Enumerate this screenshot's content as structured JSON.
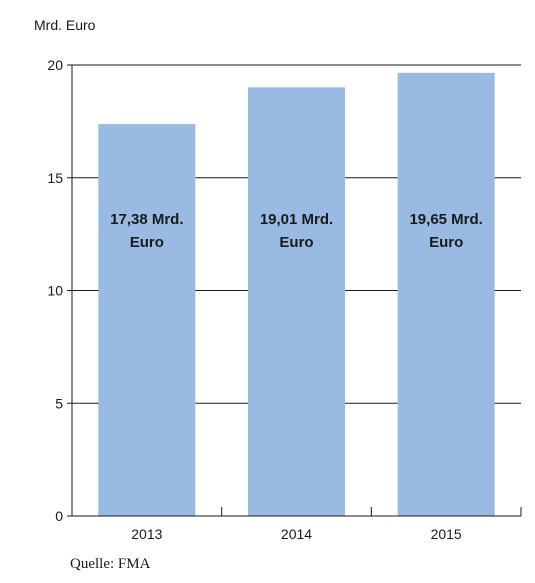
{
  "chart_data": {
    "type": "bar",
    "ylabel": "Mrd. Euro",
    "categories": [
      "2013",
      "2014",
      "2015"
    ],
    "values": [
      17.38,
      19.01,
      19.65
    ],
    "data_labels": [
      [
        "17,38 Mrd.",
        "Euro"
      ],
      [
        "19,01 Mrd.",
        "Euro"
      ],
      [
        "19,65 Mrd.",
        "Euro"
      ]
    ],
    "ylim": [
      0,
      20
    ],
    "yticks": [
      0,
      5,
      10,
      15,
      20
    ],
    "grid": true,
    "bar_color": "#99bbe3",
    "axis_color": "#1a1a1a"
  },
  "source": "Quelle: FMA"
}
